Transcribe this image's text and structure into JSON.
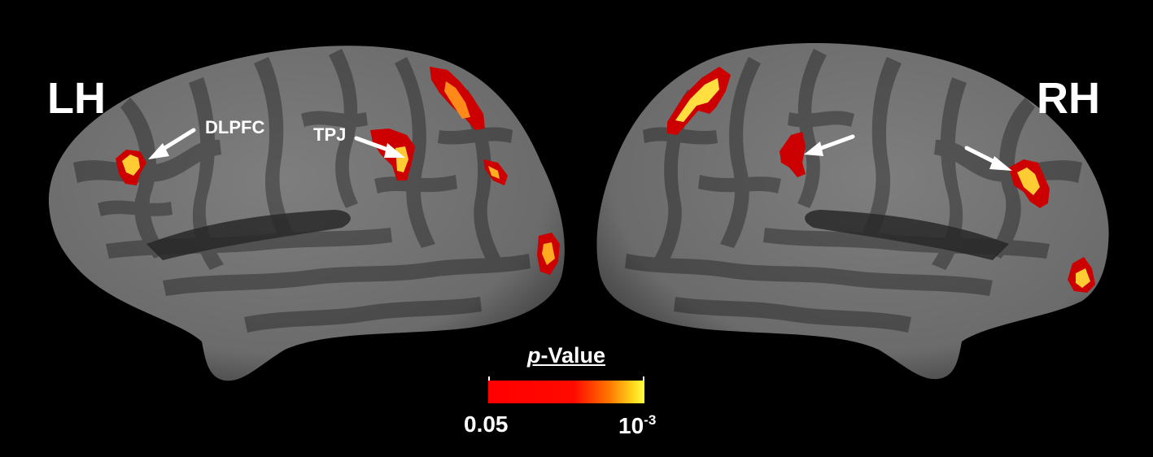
{
  "hemispheres": {
    "left": {
      "label": "LH"
    },
    "right": {
      "label": "RH"
    }
  },
  "regions": {
    "dlpfc": {
      "label": "DLPFC"
    },
    "tpj": {
      "label": "TPJ"
    }
  },
  "colorbar": {
    "title_italic": "p",
    "title_rest": "-Value",
    "min_label": "0.05",
    "max_base": "10",
    "max_exponent": "-3",
    "colors": {
      "low": "#ff0000",
      "mid": "#ff7a00",
      "high": "#ffff40"
    }
  },
  "colors": {
    "background": "#000000",
    "gyri": "#7e7e7e",
    "sulci": "#565656",
    "activation_outline": "#cc0000",
    "activation_core": "#ffcc33",
    "arrow": "#ffffff"
  }
}
